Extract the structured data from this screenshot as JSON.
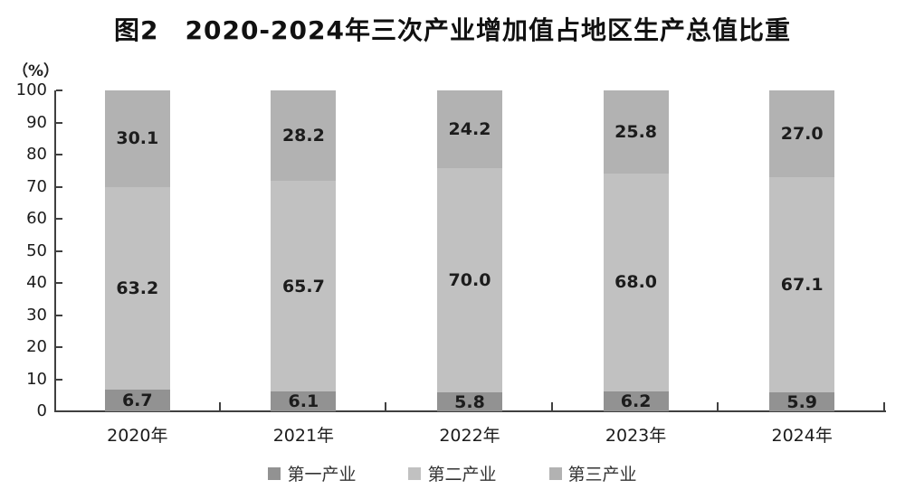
{
  "chart_data": {
    "type": "bar",
    "stacked": true,
    "title": "图2　2020-2024年三次产业增加值占地区生产总值比重",
    "unit_label": "（%）",
    "categories": [
      "2020年",
      "2021年",
      "2022年",
      "2023年",
      "2024年"
    ],
    "series": [
      {
        "name": "第一产业",
        "color": "#929292",
        "values": [
          6.7,
          6.1,
          5.8,
          6.2,
          5.9
        ],
        "labels": [
          "6.7",
          "6.1",
          "5.8",
          "6.2",
          "5.9"
        ]
      },
      {
        "name": "第二产业",
        "color": "#c1c1c1",
        "values": [
          63.2,
          65.7,
          70.0,
          68.0,
          67.1
        ],
        "labels": [
          "63.2",
          "65.7",
          "70.0",
          "68.0",
          "67.1"
        ]
      },
      {
        "name": "第三产业",
        "color": "#b2b2b2",
        "values": [
          30.1,
          28.2,
          24.2,
          25.8,
          27.0
        ],
        "labels": [
          "30.1",
          "28.2",
          "24.2",
          "25.8",
          "27.0"
        ]
      }
    ],
    "ylim": [
      0,
      100
    ],
    "ytick_step": 10,
    "yticks": [
      0,
      10,
      20,
      30,
      40,
      50,
      60,
      70,
      80,
      90,
      100
    ],
    "grid": false,
    "legend_position": "bottom",
    "axis_color": "#404040",
    "text_color": "#1c1c1c"
  }
}
